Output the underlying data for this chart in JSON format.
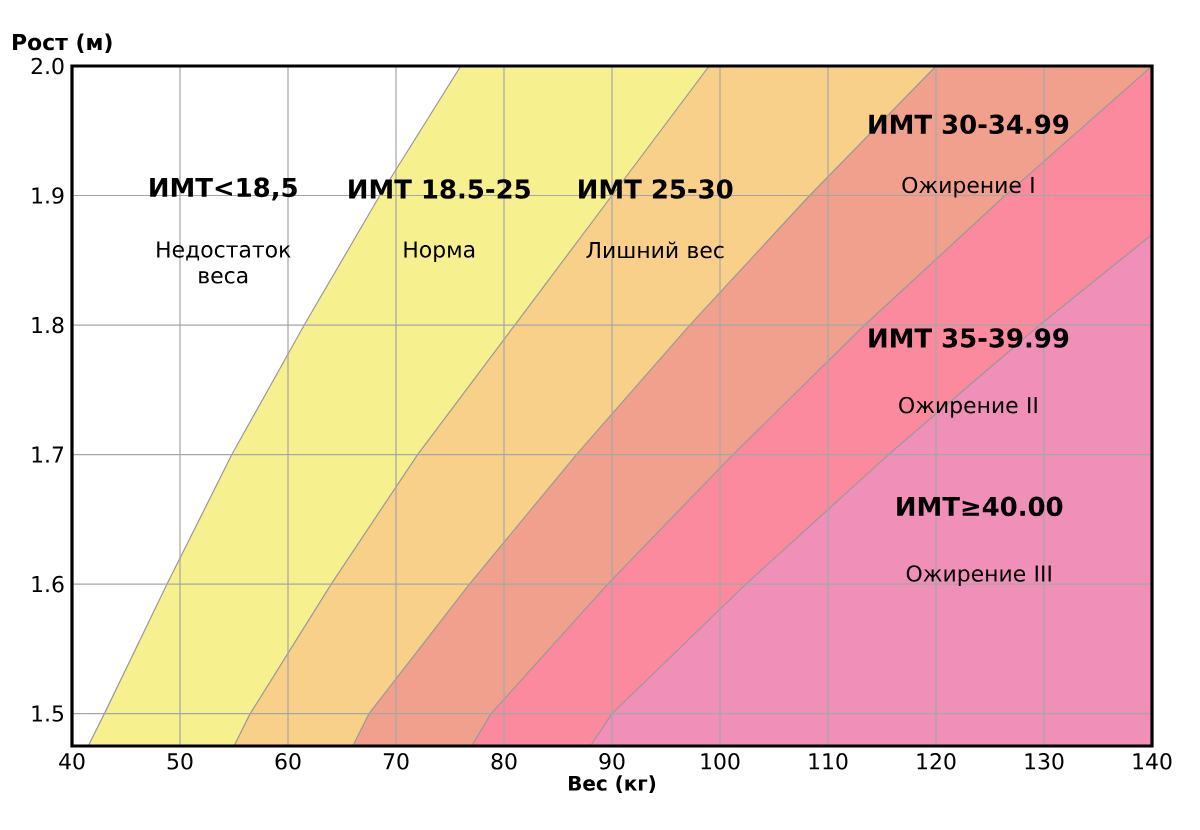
{
  "chart_data": {
    "type": "area",
    "xlabel": "Вес (кг)",
    "ylabel": "Рост (м)",
    "xlim": [
      40,
      140
    ],
    "ylim": [
      1.475,
      2.0
    ],
    "xticks": [
      40,
      50,
      60,
      70,
      80,
      90,
      100,
      110,
      120,
      130,
      140
    ],
    "yticks": [
      1.5,
      1.6,
      1.7,
      1.8,
      1.9,
      {
        "value": 2.0,
        "label": "2.0"
      }
    ],
    "grid": true,
    "series": [
      {
        "color": "#f7f08f",
        "x": [
          41.5,
          43,
          48.8,
          54.8,
          61.5,
          68.5,
          76,
          140
        ],
        "values": [
          1.475,
          1.5,
          1.6,
          1.7,
          1.8,
          1.9,
          2.0,
          2.0
        ]
      },
      {
        "color": "#f9d08a",
        "x": [
          55,
          56.5,
          64,
          72,
          81,
          90,
          99,
          140
        ],
        "values": [
          1.475,
          1.5,
          1.6,
          1.7,
          1.8,
          1.9,
          2.0,
          2.0
        ]
      },
      {
        "color": "#f2a08e",
        "x": [
          66,
          67.5,
          76.8,
          86.7,
          97.2,
          108.3,
          120,
          140
        ],
        "values": [
          1.475,
          1.5,
          1.6,
          1.7,
          1.8,
          1.9,
          2.0,
          2.0
        ]
      },
      {
        "color": "#fb8a9e",
        "x": [
          77,
          78.8,
          89.6,
          101.2,
          113.4,
          126.4,
          140
        ],
        "values": [
          1.475,
          1.5,
          1.6,
          1.7,
          1.8,
          1.9,
          2.0
        ]
      },
      {
        "color": "#f08fb7",
        "x": [
          88,
          90,
          102.4,
          115.6,
          129.6,
          140
        ],
        "values": [
          1.475,
          1.5,
          1.6,
          1.7,
          1.8,
          1.87
        ]
      }
    ],
    "annotations": [
      "ИМТ<18,5",
      "Недостаток веса",
      "ИМТ 18.5-25",
      "Норма",
      "ИМТ 25-30",
      "Лишний вес",
      "ИМТ 30-34.99",
      "Ожирение I",
      "ИМТ 35-39.99",
      "Ожирение II",
      "ИМТ≥40.00",
      "Ожирение III"
    ]
  }
}
